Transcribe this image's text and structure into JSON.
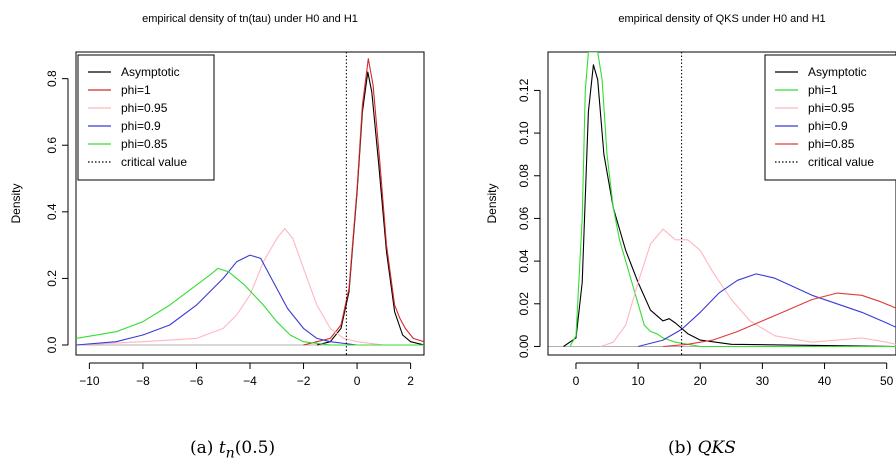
{
  "chart_data": [
    {
      "type": "line",
      "title": "empirical density of tn(tau) under H0 and H1",
      "xlabel": "",
      "ylabel": "Density",
      "xlim": [
        -10.5,
        2.5
      ],
      "ylim": [
        -0.03,
        0.88
      ],
      "xticks": [
        -10,
        -8,
        -6,
        -4,
        -2,
        0,
        2
      ],
      "yticks": [
        0.0,
        0.2,
        0.4,
        0.6,
        0.8
      ],
      "legend_position": "top-left",
      "critical_value": -0.4,
      "caption": {
        "prefix": "(a) ",
        "math": "t",
        "sub": "n",
        "suffix": "(0.5)"
      },
      "series": [
        {
          "name": "Asymptotic",
          "color": "#000000",
          "style": "solid",
          "points": [
            [
              -1.5,
              0
            ],
            [
              -1,
              0.01
            ],
            [
              -0.6,
              0.05
            ],
            [
              -0.3,
              0.16
            ],
            [
              0,
              0.46
            ],
            [
              0.2,
              0.7
            ],
            [
              0.4,
              0.82
            ],
            [
              0.55,
              0.76
            ],
            [
              0.8,
              0.55
            ],
            [
              1.1,
              0.28
            ],
            [
              1.4,
              0.1
            ],
            [
              1.7,
              0.03
            ],
            [
              2,
              0.01
            ],
            [
              2.5,
              0
            ]
          ]
        },
        {
          "name": "phi=1",
          "color": "#d62728",
          "style": "solid",
          "points": [
            [
              -2,
              0
            ],
            [
              -1.5,
              0.01
            ],
            [
              -1,
              0.02
            ],
            [
              -0.6,
              0.06
            ],
            [
              -0.3,
              0.17
            ],
            [
              0,
              0.47
            ],
            [
              0.2,
              0.72
            ],
            [
              0.42,
              0.86
            ],
            [
              0.6,
              0.78
            ],
            [
              0.85,
              0.55
            ],
            [
              1.1,
              0.3
            ],
            [
              1.4,
              0.12
            ],
            [
              1.6,
              0.08
            ],
            [
              1.8,
              0.05
            ],
            [
              2.1,
              0.02
            ],
            [
              2.5,
              0.01
            ]
          ]
        },
        {
          "name": "phi=0.95",
          "color": "#ffb6c1",
          "style": "solid",
          "points": [
            [
              -10.5,
              0
            ],
            [
              -8,
              0.01
            ],
            [
              -6,
              0.02
            ],
            [
              -5,
              0.05
            ],
            [
              -4.5,
              0.09
            ],
            [
              -4,
              0.15
            ],
            [
              -3.5,
              0.25
            ],
            [
              -3,
              0.32
            ],
            [
              -2.7,
              0.35
            ],
            [
              -2.4,
              0.32
            ],
            [
              -2,
              0.23
            ],
            [
              -1.5,
              0.12
            ],
            [
              -1,
              0.05
            ],
            [
              -0.5,
              0.02
            ],
            [
              0,
              0.01
            ],
            [
              1,
              0
            ],
            [
              2.5,
              0
            ]
          ]
        },
        {
          "name": "phi=0.9",
          "color": "#3a3ad6",
          "style": "solid",
          "points": [
            [
              -10.5,
              0
            ],
            [
              -9,
              0.01
            ],
            [
              -8,
              0.03
            ],
            [
              -7,
              0.06
            ],
            [
              -6,
              0.12
            ],
            [
              -5,
              0.2
            ],
            [
              -4.5,
              0.25
            ],
            [
              -4,
              0.27
            ],
            [
              -3.6,
              0.26
            ],
            [
              -3.2,
              0.2
            ],
            [
              -2.6,
              0.11
            ],
            [
              -2,
              0.05
            ],
            [
              -1.5,
              0.02
            ],
            [
              -1,
              0.01
            ],
            [
              0,
              0
            ],
            [
              2.5,
              0
            ]
          ]
        },
        {
          "name": "phi=0.85",
          "color": "#33dd33",
          "style": "solid",
          "points": [
            [
              -10.5,
              0.02
            ],
            [
              -9,
              0.04
            ],
            [
              -8,
              0.07
            ],
            [
              -7,
              0.12
            ],
            [
              -6,
              0.18
            ],
            [
              -5.5,
              0.21
            ],
            [
              -5.2,
              0.23
            ],
            [
              -4.8,
              0.22
            ],
            [
              -4.2,
              0.18
            ],
            [
              -3.5,
              0.12
            ],
            [
              -3,
              0.07
            ],
            [
              -2.5,
              0.03
            ],
            [
              -2,
              0.01
            ],
            [
              -1,
              0
            ],
            [
              2.5,
              0
            ]
          ]
        },
        {
          "name": "critical value",
          "color": "#000000",
          "style": "dotted",
          "vline": -0.4
        }
      ]
    },
    {
      "type": "line",
      "title": "empirical density of QKS under H0 and H1",
      "xlabel": "",
      "ylabel": "Density",
      "xlim": [
        -4.5,
        51.5
      ],
      "ylim": [
        -0.004,
        0.138
      ],
      "xticks": [
        0,
        10,
        20,
        30,
        40,
        50
      ],
      "yticks": [
        0.0,
        0.02,
        0.04,
        0.06,
        0.08,
        0.1,
        0.12
      ],
      "legend_position": "top-right",
      "critical_value": 17,
      "caption": {
        "prefix": "(b) ",
        "math": "QKS",
        "sub": "",
        "suffix": ""
      },
      "series": [
        {
          "name": "Asymptotic",
          "color": "#000000",
          "style": "solid",
          "points": [
            [
              -2,
              0
            ],
            [
              0,
              0.004
            ],
            [
              1,
              0.03
            ],
            [
              2,
              0.11
            ],
            [
              2.8,
              0.132
            ],
            [
              3.5,
              0.125
            ],
            [
              4.5,
              0.09
            ],
            [
              6,
              0.065
            ],
            [
              7,
              0.055
            ],
            [
              8,
              0.045
            ],
            [
              10,
              0.03
            ],
            [
              12,
              0.017
            ],
            [
              14,
              0.012
            ],
            [
              15,
              0.013
            ],
            [
              16,
              0.011
            ],
            [
              18,
              0.006
            ],
            [
              20,
              0.003
            ],
            [
              25,
              0.001
            ],
            [
              51.5,
              0
            ]
          ]
        },
        {
          "name": "phi=1",
          "color": "#33dd33",
          "style": "solid",
          "points": [
            [
              -1,
              0
            ],
            [
              0,
              0.005
            ],
            [
              1,
              0.06
            ],
            [
              1.5,
              0.12
            ],
            [
              2,
              0.138
            ],
            [
              3,
              0.138
            ],
            [
              3.5,
              0.138
            ],
            [
              4.2,
              0.125
            ],
            [
              5,
              0.09
            ],
            [
              6,
              0.065
            ],
            [
              7,
              0.05
            ],
            [
              8,
              0.04
            ],
            [
              9,
              0.03
            ],
            [
              10,
              0.02
            ],
            [
              11,
              0.01
            ],
            [
              12,
              0.007
            ],
            [
              13,
              0.006
            ],
            [
              14,
              0.004
            ],
            [
              16,
              0.002
            ],
            [
              18,
              0.001
            ],
            [
              20,
              0
            ],
            [
              51.5,
              0
            ]
          ]
        },
        {
          "name": "phi=0.95",
          "color": "#ffb6c1",
          "style": "solid",
          "points": [
            [
              4,
              0
            ],
            [
              6,
              0.002
            ],
            [
              8,
              0.01
            ],
            [
              10,
              0.03
            ],
            [
              12,
              0.048
            ],
            [
              14,
              0.055
            ],
            [
              16,
              0.05
            ],
            [
              18,
              0.05
            ],
            [
              20,
              0.045
            ],
            [
              22,
              0.035
            ],
            [
              25,
              0.022
            ],
            [
              28,
              0.012
            ],
            [
              32,
              0.005
            ],
            [
              38,
              0.002
            ],
            [
              42,
              0.003
            ],
            [
              46,
              0.004
            ],
            [
              50,
              0.002
            ],
            [
              51.5,
              0.001
            ]
          ]
        },
        {
          "name": "phi=0.9",
          "color": "#3a3ad6",
          "style": "solid",
          "points": [
            [
              10,
              0
            ],
            [
              14,
              0.003
            ],
            [
              17,
              0.008
            ],
            [
              20,
              0.016
            ],
            [
              23,
              0.025
            ],
            [
              26,
              0.031
            ],
            [
              29,
              0.034
            ],
            [
              32,
              0.032
            ],
            [
              35,
              0.028
            ],
            [
              38,
              0.024
            ],
            [
              42,
              0.02
            ],
            [
              46,
              0.016
            ],
            [
              50,
              0.011
            ],
            [
              51.5,
              0.009
            ]
          ]
        },
        {
          "name": "phi=0.85",
          "color": "#e03a3a",
          "style": "solid",
          "points": [
            [
              14,
              0
            ],
            [
              18,
              0.001
            ],
            [
              22,
              0.003
            ],
            [
              26,
              0.007
            ],
            [
              30,
              0.012
            ],
            [
              34,
              0.017
            ],
            [
              38,
              0.022
            ],
            [
              42,
              0.025
            ],
            [
              46,
              0.024
            ],
            [
              49,
              0.021
            ],
            [
              51.5,
              0.018
            ]
          ]
        },
        {
          "name": "critical value",
          "color": "#000000",
          "style": "dotted",
          "vline": 17
        }
      ]
    }
  ]
}
